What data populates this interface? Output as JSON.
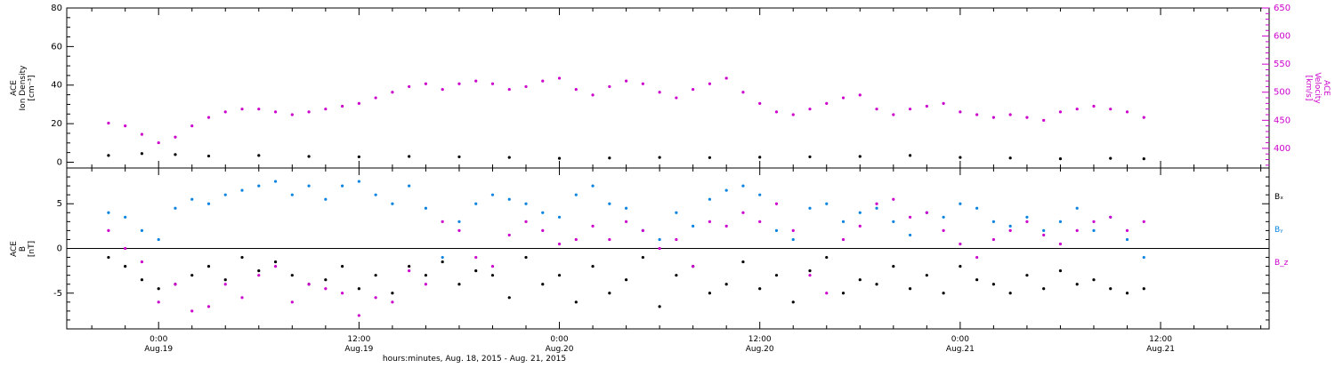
{
  "chart_data": [
    {
      "type": "scatter",
      "panel": "top",
      "ylabel": [
        "ACE",
        "Ion Density",
        "[cm⁻³]"
      ],
      "ylim": [
        -3,
        80
      ],
      "yticks": [
        0,
        20,
        40,
        60,
        80
      ],
      "y2label": [
        "ACE",
        "Velocity",
        "[km/s]"
      ],
      "y2lim": [
        365,
        650
      ],
      "y2ticks": [
        400,
        450,
        500,
        550,
        600,
        650
      ],
      "series": [
        {
          "name": "",
          "axis": "left",
          "color": "#000000",
          "x": [
            -3.0,
            -1.0,
            1.0,
            3.0,
            6.0,
            9.0,
            12.0,
            15.0,
            18.0,
            21.0,
            24.0,
            27.0,
            30.0,
            33.0,
            36.0,
            39.0,
            42.0,
            45.0,
            48.0,
            51.0,
            54.0,
            57.0,
            59.0
          ],
          "y": [
            3.5,
            4.5,
            4.0,
            3.2,
            3.5,
            3.0,
            2.8,
            3.0,
            2.8,
            2.5,
            2.0,
            2.2,
            2.5,
            2.4,
            2.6,
            2.8,
            3.0,
            3.5,
            2.5,
            2.2,
            1.8,
            2.0,
            1.8
          ]
        },
        {
          "name": "",
          "axis": "right",
          "color": "#cc00cc",
          "x": [
            -3.0,
            -2.0,
            -1.0,
            0.0,
            1.0,
            2.0,
            3.0,
            4.0,
            5.0,
            6.0,
            7.0,
            8.0,
            9.0,
            10.0,
            11.0,
            12.0,
            13.0,
            14.0,
            15.0,
            16.0,
            17.0,
            18.0,
            19.0,
            20.0,
            21.0,
            22.0,
            23.0,
            24.0,
            25.0,
            26.0,
            27.0,
            28.0,
            29.0,
            30.0,
            31.0,
            32.0,
            33.0,
            34.0,
            35.0,
            36.0,
            37.0,
            38.0,
            39.0,
            40.0,
            41.0,
            42.0,
            43.0,
            44.0,
            45.0,
            46.0,
            47.0,
            48.0,
            49.0,
            50.0,
            51.0,
            52.0,
            53.0,
            54.0,
            55.0,
            56.0,
            57.0,
            58.0,
            59.0
          ],
          "y": [
            445,
            440,
            425,
            410,
            420,
            440,
            455,
            465,
            470,
            470,
            465,
            460,
            465,
            470,
            475,
            480,
            490,
            500,
            510,
            515,
            505,
            515,
            520,
            515,
            505,
            510,
            520,
            525,
            505,
            495,
            510,
            520,
            515,
            500,
            490,
            505,
            515,
            525,
            500,
            480,
            465,
            460,
            470,
            480,
            490,
            495,
            470,
            460,
            470,
            475,
            480,
            465,
            460,
            455,
            460,
            455,
            450,
            465,
            470,
            475,
            470,
            465,
            455
          ]
        }
      ]
    },
    {
      "type": "scatter",
      "panel": "bottom",
      "ylabel": [
        "ACE",
        "B",
        "[nT]"
      ],
      "ylim": [
        -9,
        9
      ],
      "yticks": [
        -5,
        0,
        5
      ],
      "zero_line": true,
      "legend": [
        "Bₓ",
        "Bᵧ",
        "B_z"
      ],
      "legend_position": "right",
      "series": [
        {
          "name": "Bₓ",
          "color": "#000000",
          "x": [
            -3.0,
            -2.0,
            -1.0,
            0.0,
            1.0,
            2.0,
            3.0,
            4.0,
            5.0,
            6.0,
            7.0,
            8.0,
            9.0,
            10.0,
            11.0,
            12.0,
            13.0,
            14.0,
            15.0,
            16.0,
            17.0,
            18.0,
            19.0,
            20.0,
            21.0,
            22.0,
            23.0,
            24.0,
            25.0,
            26.0,
            27.0,
            28.0,
            29.0,
            30.0,
            31.0,
            32.0,
            33.0,
            34.0,
            35.0,
            36.0,
            37.0,
            38.0,
            39.0,
            40.0,
            41.0,
            42.0,
            43.0,
            44.0,
            45.0,
            46.0,
            47.0,
            48.0,
            49.0,
            50.0,
            51.0,
            52.0,
            53.0,
            54.0,
            55.0,
            56.0,
            57.0,
            58.0,
            59.0
          ],
          "y": [
            -1.0,
            -2.0,
            -3.5,
            -4.5,
            -4.0,
            -3.0,
            -2.0,
            -3.5,
            -1.0,
            -2.5,
            -1.5,
            -3.0,
            -4.0,
            -3.5,
            -2.0,
            -4.5,
            -3.0,
            -5.0,
            -2.0,
            -3.0,
            -1.5,
            -4.0,
            -2.5,
            -3.0,
            -5.5,
            -1.0,
            -4.0,
            -3.0,
            -6.0,
            -2.0,
            -5.0,
            -3.5,
            -1.0,
            -6.5,
            -3.0,
            -2.0,
            -5.0,
            -4.0,
            -1.5,
            -4.5,
            -3.0,
            -6.0,
            -2.5,
            -1.0,
            -5.0,
            -3.5,
            -4.0,
            -2.0,
            -4.5,
            -3.0,
            -5.0,
            -2.0,
            -3.5,
            -4.0,
            -5.0,
            -3.0,
            -4.5,
            -2.5,
            -4.0,
            -3.5,
            -4.5,
            -5.0,
            -4.5
          ]
        },
        {
          "name": "Bᵧ",
          "color": "#0a84e0",
          "x": [
            -3.0,
            -2.0,
            -1.0,
            0.0,
            1.0,
            2.0,
            3.0,
            4.0,
            5.0,
            6.0,
            7.0,
            8.0,
            9.0,
            10.0,
            11.0,
            12.0,
            13.0,
            14.0,
            15.0,
            16.0,
            17.0,
            18.0,
            19.0,
            20.0,
            21.0,
            22.0,
            23.0,
            24.0,
            25.0,
            26.0,
            27.0,
            28.0,
            29.0,
            30.0,
            31.0,
            32.0,
            33.0,
            34.0,
            35.0,
            36.0,
            37.0,
            38.0,
            39.0,
            40.0,
            41.0,
            42.0,
            43.0,
            44.0,
            45.0,
            46.0,
            47.0,
            48.0,
            49.0,
            50.0,
            51.0,
            52.0,
            53.0,
            54.0,
            55.0,
            56.0,
            57.0,
            58.0,
            59.0
          ],
          "y": [
            4.0,
            3.5,
            2.0,
            1.0,
            4.5,
            5.5,
            5.0,
            6.0,
            6.5,
            7.0,
            7.5,
            6.0,
            7.0,
            5.5,
            7.0,
            7.5,
            6.0,
            5.0,
            7.0,
            4.5,
            -1.0,
            3.0,
            5.0,
            6.0,
            5.5,
            5.0,
            4.0,
            3.5,
            6.0,
            7.0,
            5.0,
            4.5,
            2.0,
            1.0,
            4.0,
            2.5,
            5.5,
            6.5,
            7.0,
            6.0,
            2.0,
            1.0,
            4.5,
            5.0,
            3.0,
            4.0,
            4.5,
            3.0,
            1.5,
            4.0,
            3.5,
            5.0,
            4.5,
            3.0,
            2.5,
            3.5,
            2.0,
            3.0,
            4.5,
            2.0,
            3.5,
            1.0,
            -1.0
          ]
        },
        {
          "name": "B_z",
          "color": "#cc00cc",
          "x": [
            -3.0,
            -2.0,
            -1.0,
            0.0,
            1.0,
            2.0,
            3.0,
            4.0,
            5.0,
            6.0,
            7.0,
            8.0,
            9.0,
            10.0,
            11.0,
            12.0,
            13.0,
            14.0,
            15.0,
            16.0,
            17.0,
            18.0,
            19.0,
            20.0,
            21.0,
            22.0,
            23.0,
            24.0,
            25.0,
            26.0,
            27.0,
            28.0,
            29.0,
            30.0,
            31.0,
            32.0,
            33.0,
            34.0,
            35.0,
            36.0,
            37.0,
            38.0,
            39.0,
            40.0,
            41.0,
            42.0,
            43.0,
            44.0,
            45.0,
            46.0,
            47.0,
            48.0,
            49.0,
            50.0,
            51.0,
            52.0,
            53.0,
            54.0,
            55.0,
            56.0,
            57.0,
            58.0,
            59.0
          ],
          "y": [
            2.0,
            0.0,
            -1.5,
            -6.0,
            -4.0,
            -7.0,
            -6.5,
            -4.0,
            -5.5,
            -3.0,
            -2.0,
            -6.0,
            -4.0,
            -4.5,
            -5.0,
            -7.5,
            -5.5,
            -6.0,
            -2.5,
            -4.0,
            3.0,
            2.0,
            -1.0,
            -2.0,
            1.5,
            3.0,
            2.0,
            0.5,
            1.0,
            2.5,
            1.0,
            3.0,
            2.0,
            0.0,
            1.0,
            -2.0,
            3.0,
            2.5,
            4.0,
            3.0,
            5.0,
            2.0,
            -3.0,
            -5.0,
            1.0,
            2.5,
            5.0,
            5.5,
            3.5,
            4.0,
            2.0,
            0.5,
            -1.0,
            1.0,
            2.0,
            3.0,
            1.5,
            0.5,
            2.0,
            3.0,
            3.5,
            2.0,
            3.0
          ]
        }
      ]
    }
  ],
  "xaxis": {
    "range_hours": [
      -5.5,
      66.5
    ],
    "ticks": [
      {
        "hour": 0,
        "time": "0:00",
        "date": "Aug.19"
      },
      {
        "hour": 12,
        "time": "12:00",
        "date": "Aug.19"
      },
      {
        "hour": 24,
        "time": "0:00",
        "date": "Aug.20"
      },
      {
        "hour": 36,
        "time": "12:00",
        "date": "Aug.20"
      },
      {
        "hour": 48,
        "time": "0:00",
        "date": "Aug.21"
      },
      {
        "hour": 60,
        "time": "12:00",
        "date": "Aug.21"
      }
    ],
    "minor_step_hours": 2,
    "label": "hours:minutes, Aug. 18, 2015 - Aug. 21, 2015"
  },
  "colors": {
    "black": "#000000",
    "magenta": "#cc00cc",
    "blue": "#0a84e0"
  }
}
